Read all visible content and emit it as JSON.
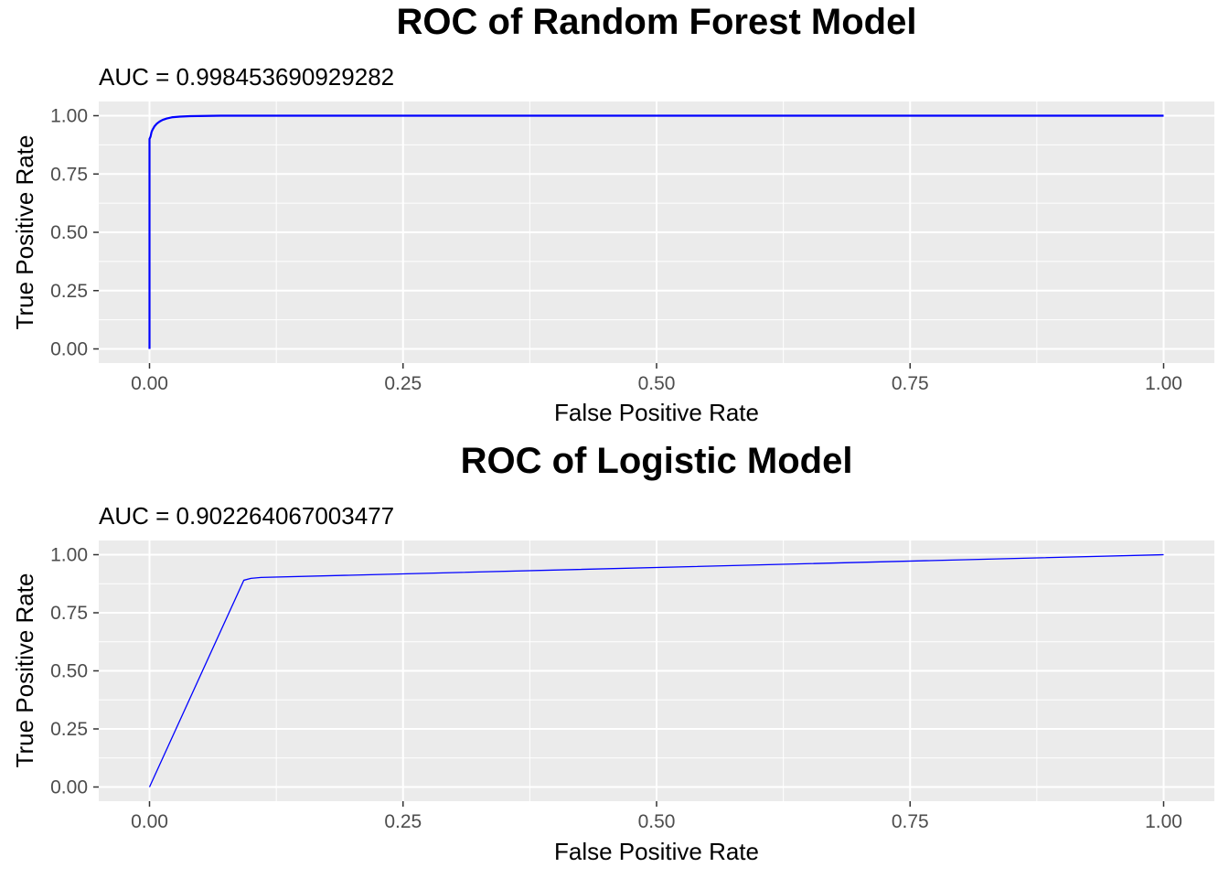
{
  "chart_data": [
    {
      "type": "line",
      "title": "ROC of Random Forest Model",
      "subtitle": "AUC = 0.998453690929282",
      "xlabel": "False Positive Rate",
      "ylabel": "True Positive Rate",
      "xlim": [
        0,
        1
      ],
      "ylim": [
        0,
        1
      ],
      "xticks": [
        0,
        0.25,
        0.5,
        0.75,
        1
      ],
      "xtick_labels": [
        "0.00",
        "0.25",
        "0.50",
        "0.75",
        "1.00"
      ],
      "yticks": [
        0,
        0.25,
        0.5,
        0.75,
        1
      ],
      "ytick_labels": [
        "0.00",
        "0.25",
        "0.50",
        "0.75",
        "1.00"
      ],
      "grid": true,
      "line_color": "#0000ff",
      "series": [
        {
          "x": [
            0,
            0,
            0.001,
            0.002,
            0.003,
            0.005,
            0.007,
            0.01,
            0.013,
            0.017,
            0.022,
            0.03,
            0.04,
            0.055,
            0.07,
            1.0
          ],
          "y": [
            0,
            0.9,
            0.91,
            0.93,
            0.94,
            0.955,
            0.965,
            0.975,
            0.982,
            0.988,
            0.993,
            0.996,
            0.998,
            0.999,
            1.0,
            1.0
          ]
        }
      ]
    },
    {
      "type": "line",
      "title": "ROC of Logistic Model",
      "subtitle": "AUC = 0.902264067003477",
      "xlabel": "False Positive Rate",
      "ylabel": "True Positive Rate",
      "xlim": [
        0,
        1
      ],
      "ylim": [
        0,
        1
      ],
      "xticks": [
        0,
        0.25,
        0.5,
        0.75,
        1
      ],
      "xtick_labels": [
        "0.00",
        "0.25",
        "0.50",
        "0.75",
        "1.00"
      ],
      "yticks": [
        0,
        0.25,
        0.5,
        0.75,
        1
      ],
      "ytick_labels": [
        "0.00",
        "0.25",
        "0.50",
        "0.75",
        "1.00"
      ],
      "grid": true,
      "line_color": "#0000ff",
      "series": [
        {
          "x": [
            0,
            0.093,
            0.1,
            0.11,
            1.0
          ],
          "y": [
            0,
            0.89,
            0.898,
            0.902,
            1.0
          ]
        }
      ]
    }
  ]
}
